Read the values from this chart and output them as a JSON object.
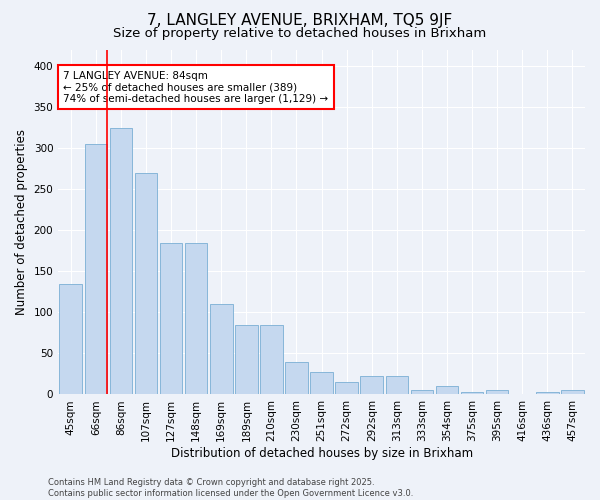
{
  "title": "7, LANGLEY AVENUE, BRIXHAM, TQ5 9JF",
  "subtitle": "Size of property relative to detached houses in Brixham",
  "xlabel": "Distribution of detached houses by size in Brixham",
  "ylabel": "Number of detached properties",
  "bar_labels": [
    "45sqm",
    "66sqm",
    "86sqm",
    "107sqm",
    "127sqm",
    "148sqm",
    "169sqm",
    "189sqm",
    "210sqm",
    "230sqm",
    "251sqm",
    "272sqm",
    "292sqm",
    "313sqm",
    "333sqm",
    "354sqm",
    "375sqm",
    "395sqm",
    "416sqm",
    "436sqm",
    "457sqm"
  ],
  "bar_values": [
    135,
    305,
    325,
    270,
    185,
    185,
    110,
    85,
    85,
    40,
    27,
    15,
    22,
    22,
    5,
    10,
    3,
    5,
    0,
    3,
    5
  ],
  "bar_color": "#c5d8ef",
  "bar_edge_color": "#7aafd4",
  "red_line_index": 1,
  "annotation_text": "7 LANGLEY AVENUE: 84sqm\n← 25% of detached houses are smaller (389)\n74% of semi-detached houses are larger (1,129) →",
  "annotation_box_color": "white",
  "annotation_box_edge_color": "red",
  "ylim": [
    0,
    420
  ],
  "yticks": [
    0,
    50,
    100,
    150,
    200,
    250,
    300,
    350,
    400
  ],
  "footer_text": "Contains HM Land Registry data © Crown copyright and database right 2025.\nContains public sector information licensed under the Open Government Licence v3.0.",
  "background_color": "#eef2f9",
  "plot_background_color": "#eef2f9",
  "grid_color": "white",
  "title_fontsize": 11,
  "subtitle_fontsize": 9.5,
  "label_fontsize": 8.5,
  "tick_fontsize": 7.5,
  "footer_fontsize": 6,
  "annotation_fontsize": 7.5
}
